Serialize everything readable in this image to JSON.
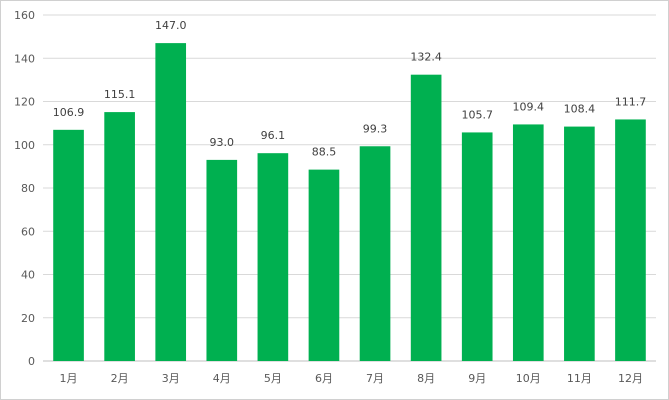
{
  "chart_data": {
    "type": "bar",
    "categories": [
      "1月",
      "2月",
      "3月",
      "4月",
      "5月",
      "6月",
      "7月",
      "8月",
      "9月",
      "10月",
      "11月",
      "12月"
    ],
    "values": [
      106.9,
      115.1,
      147.0,
      93.0,
      96.1,
      88.5,
      99.3,
      132.4,
      105.7,
      109.4,
      108.4,
      111.7
    ],
    "data_labels": [
      "106.9",
      "115.1",
      "147.0",
      "93.0",
      "96.1",
      "88.5",
      "99.3",
      "132.4",
      "105.7",
      "109.4",
      "108.4",
      "111.7"
    ],
    "ylim": [
      0,
      160
    ],
    "yticks": [
      0,
      20,
      40,
      60,
      80,
      100,
      120,
      140,
      160
    ],
    "grid": true,
    "legend": "none",
    "bar_color": "#00b050",
    "grid_color": "#d9d9d9"
  }
}
